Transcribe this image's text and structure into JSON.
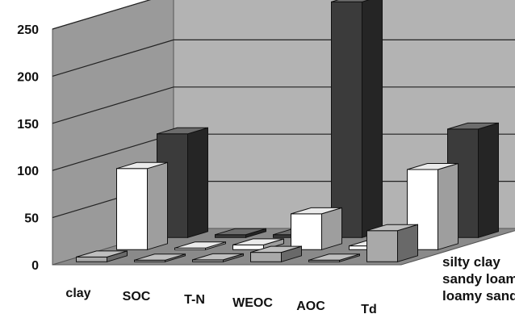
{
  "chart_data": {
    "type": "bar",
    "variant": "3d-clustered",
    "categories": [
      "clay",
      "SOC",
      "T-N",
      "WEOC",
      "AOC",
      "Td"
    ],
    "series": [
      {
        "name": "loamy sand",
        "values": [
          5,
          1,
          2,
          10,
          1,
          33
        ],
        "color": "#a9a9a9"
      },
      {
        "name": "sandy loam",
        "values": [
          86,
          1,
          5,
          38,
          4,
          85
        ],
        "color": "#ffffff"
      },
      {
        "name": "silty clay",
        "values": [
          110,
          3,
          3,
          250,
          4,
          115
        ],
        "color": "#3b3b3b"
      }
    ],
    "yticks": [
      0,
      50,
      100,
      150,
      200,
      250
    ],
    "ylim": [
      0,
      250
    ],
    "grid": true,
    "legend": "series labels along depth axis (right)"
  }
}
